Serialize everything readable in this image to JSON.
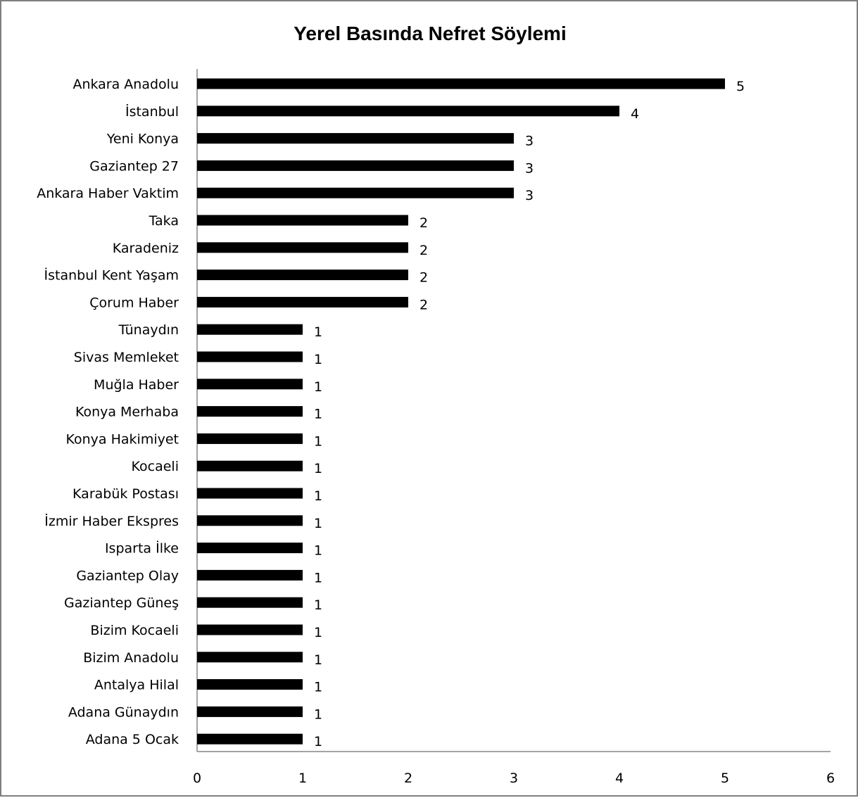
{
  "chart_data": {
    "type": "bar",
    "orientation": "horizontal",
    "title": "Yerel Basında Nefret Söylemi",
    "xlabel": "",
    "ylabel": "",
    "xlim": [
      0,
      6
    ],
    "x_ticks": [
      0,
      1,
      2,
      3,
      4,
      5,
      6
    ],
    "grid": false,
    "legend": "none",
    "bar_color": "#000000",
    "categories": [
      "Ankara Anadolu",
      "İstanbul",
      "Yeni Konya",
      "Gaziantep 27",
      "Ankara Haber Vaktim",
      "Taka",
      "Karadeniz",
      "İstanbul Kent Yaşam",
      "Çorum Haber",
      "Tünaydın",
      "Sivas Memleket",
      "Muğla Haber",
      "Konya Merhaba",
      "Konya Hakimiyet",
      "Kocaeli",
      "Karabük Postası",
      "İzmir Haber Ekspres",
      "Isparta İlke",
      "Gaziantep Olay",
      "Gaziantep Güneş",
      "Bizim Kocaeli",
      "Bizim Anadolu",
      "Antalya Hilal",
      "Adana Günaydın",
      "Adana 5 Ocak"
    ],
    "values": [
      5,
      4,
      3,
      3,
      3,
      2,
      2,
      2,
      2,
      1,
      1,
      1,
      1,
      1,
      1,
      1,
      1,
      1,
      1,
      1,
      1,
      1,
      1,
      1,
      1
    ]
  }
}
